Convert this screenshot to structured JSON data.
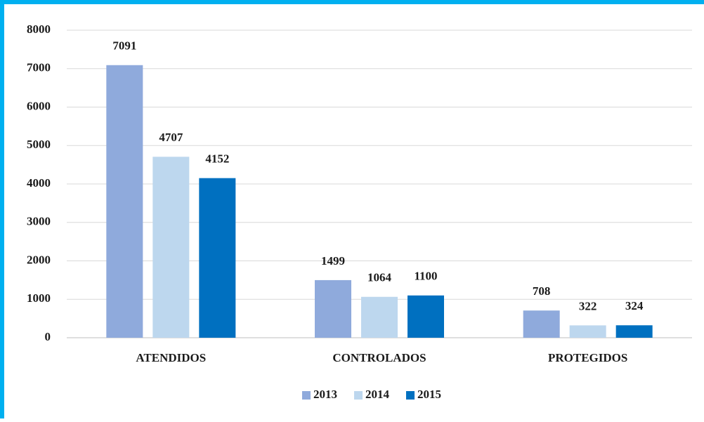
{
  "chart_data": {
    "type": "bar",
    "categories": [
      "ATENDIDOS",
      "CONTROLADOS",
      "PROTEGIDOS"
    ],
    "series": [
      {
        "name": "2013",
        "color": "#8faadc",
        "values": [
          7091,
          1499,
          708
        ]
      },
      {
        "name": "2014",
        "color": "#bdd7ee",
        "values": [
          4707,
          1064,
          322
        ]
      },
      {
        "name": "2015",
        "color": "#0070c0",
        "values": [
          4152,
          1100,
          324
        ]
      }
    ],
    "ylim": [
      0,
      8000
    ],
    "yticks": [
      0,
      1000,
      2000,
      3000,
      4000,
      5000,
      6000,
      7000,
      8000
    ],
    "grid": true,
    "legend": "bottom"
  }
}
